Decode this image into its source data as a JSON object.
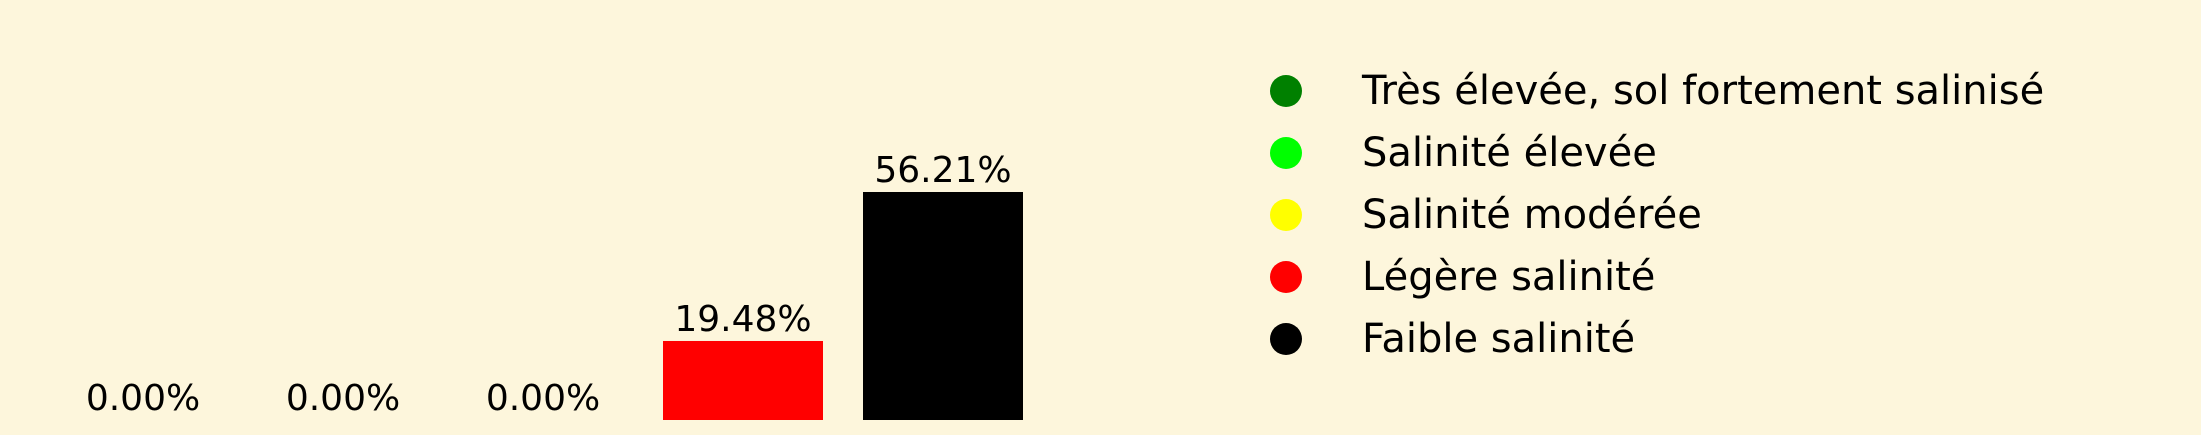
{
  "chart_data": {
    "type": "bar",
    "title": "",
    "xlabel": "",
    "ylabel": "",
    "categories": [
      "Très élevée, sol fortement salinisé",
      "Salinité élevée",
      "Salinité modérée",
      "Légère salinité",
      "Faible salinité"
    ],
    "values": [
      0.0,
      0.0,
      0.0,
      19.48,
      56.21
    ],
    "value_labels": [
      "0.00%",
      "0.00%",
      "0.00%",
      "19.48%",
      "56.21%"
    ],
    "colors": [
      "#008000",
      "#00ff00",
      "#ffff00",
      "#ff0000",
      "#000000"
    ],
    "ylim": [
      0,
      56.21
    ],
    "grid": false,
    "axes_visible": false,
    "legend": {
      "placement": "right",
      "entries": [
        {
          "label": "Très élevée, sol fortement salinisé",
          "color": "#008000"
        },
        {
          "label": "Salinité élevée",
          "color": "#00ff00"
        },
        {
          "label": "Salinité modérée",
          "color": "#ffff00"
        },
        {
          "label": "Légère salinité",
          "color": "#ff0000"
        },
        {
          "label": "Faible salinité",
          "color": "#000000"
        }
      ]
    }
  },
  "background_color": "#fdf6dc"
}
